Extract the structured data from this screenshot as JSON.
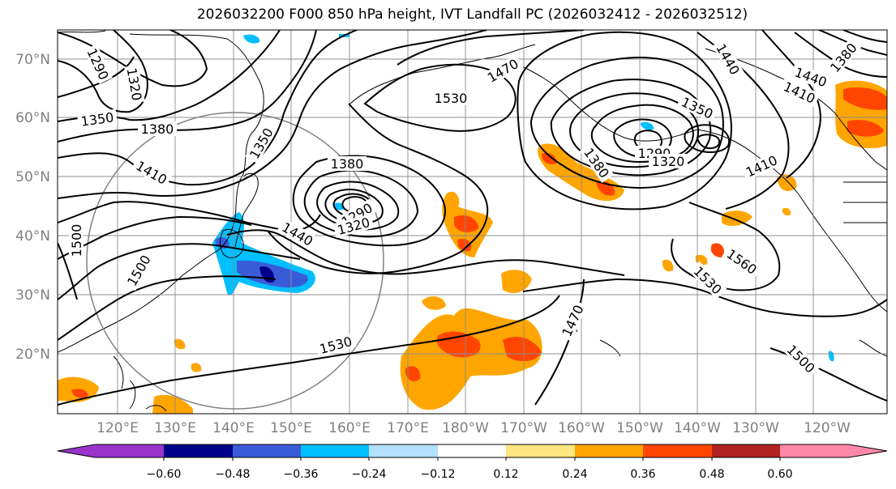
{
  "title": "2026032200 F000 850 hPa height, IVT Landfall PC (2026032412 - 2026032512)",
  "lat_labels": [
    "70°N",
    "60°N",
    "50°N",
    "40°N",
    "30°N",
    "20°N"
  ],
  "lon_labels": [
    "120°E",
    "130°E",
    "140°E",
    "150°E",
    "160°E",
    "170°E",
    "180°W",
    "170°W",
    "160°W",
    "150°W",
    "140°W",
    "130°W",
    "120°W"
  ],
  "contour_labels": [
    "1290",
    "1320",
    "1350",
    "1380",
    "1350",
    "1410",
    "1500",
    "1500",
    "1380",
    "1290",
    "1320",
    "1440",
    "1530",
    "1470",
    "1530",
    "1470",
    "1350",
    "1290",
    "1320",
    "1380",
    "1410",
    "1440",
    "1440",
    "1410",
    "1380",
    "1560",
    "1530",
    "1500"
  ],
  "colorbar": {
    "ticks": [
      "−0.60",
      "−0.48",
      "−0.36",
      "−0.24",
      "−0.12",
      "0.12",
      "0.24",
      "0.36",
      "0.48",
      "0.60"
    ],
    "colors": [
      "#9933cc",
      "#00008b",
      "#3a5bd9",
      "#00bfff",
      "#b3e0ff",
      "#ffffff",
      "#ffe680",
      "#ffa500",
      "#ff4500",
      "#b22222",
      "#ff88aa",
      "#ff88aa"
    ]
  }
}
